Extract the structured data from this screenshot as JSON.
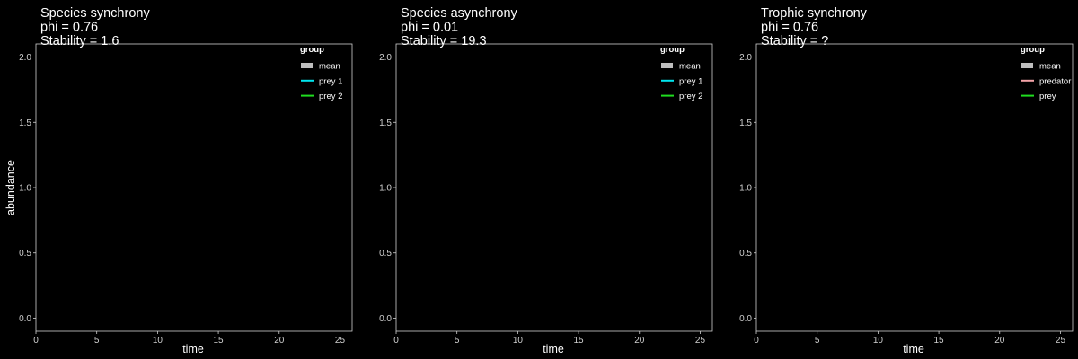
{
  "chart_data": [
    {
      "type": "line",
      "title_lines": [
        "Species synchrony",
        "phi = 0.76",
        "Stability = 1.6"
      ],
      "xlabel": "time",
      "ylabel": "abundance",
      "xlim": [
        0,
        26
      ],
      "ylim": [
        -0.1,
        2.1
      ],
      "x_ticks": [
        0,
        5,
        10,
        15,
        20,
        25
      ],
      "y_ticks": [
        "0.0",
        "0.5",
        "1.0",
        "1.5",
        "2.0"
      ],
      "legend": {
        "title": "group",
        "placement": "top-right",
        "items": [
          {
            "label": "mean",
            "color": "#bdbdbd"
          },
          {
            "label": "prey 1",
            "color": "#00e5ee"
          },
          {
            "label": "prey 2",
            "color": "#1fdc1f"
          }
        ]
      },
      "series": []
    },
    {
      "type": "line",
      "title_lines": [
        "Species asynchrony",
        "phi = 0.01",
        "Stability = 19.3"
      ],
      "xlabel": "time",
      "ylabel": "",
      "xlim": [
        0,
        26
      ],
      "ylim": [
        -0.1,
        2.1
      ],
      "x_ticks": [
        0,
        5,
        10,
        15,
        20,
        25
      ],
      "y_ticks": [
        "0.0",
        "0.5",
        "1.0",
        "1.5",
        "2.0"
      ],
      "legend": {
        "title": "group",
        "placement": "top-right",
        "items": [
          {
            "label": "mean",
            "color": "#bdbdbd"
          },
          {
            "label": "prey 1",
            "color": "#00e5ee"
          },
          {
            "label": "prey 2",
            "color": "#1fdc1f"
          }
        ]
      },
      "series": []
    },
    {
      "type": "line",
      "title_lines": [
        "Trophic synchrony",
        "phi = 0.76",
        "Stability = ?"
      ],
      "xlabel": "time",
      "ylabel": "",
      "xlim": [
        0,
        26
      ],
      "ylim": [
        -0.1,
        2.1
      ],
      "x_ticks": [
        0,
        5,
        10,
        15,
        20,
        25
      ],
      "y_ticks": [
        "0.0",
        "0.5",
        "1.0",
        "1.5",
        "2.0"
      ],
      "legend": {
        "title": "group",
        "placement": "top-right",
        "items": [
          {
            "label": "mean",
            "color": "#bdbdbd"
          },
          {
            "label": "predator",
            "color": "#f4a3a8"
          },
          {
            "label": "prey",
            "color": "#1fdc1f"
          }
        ]
      },
      "series": []
    }
  ]
}
